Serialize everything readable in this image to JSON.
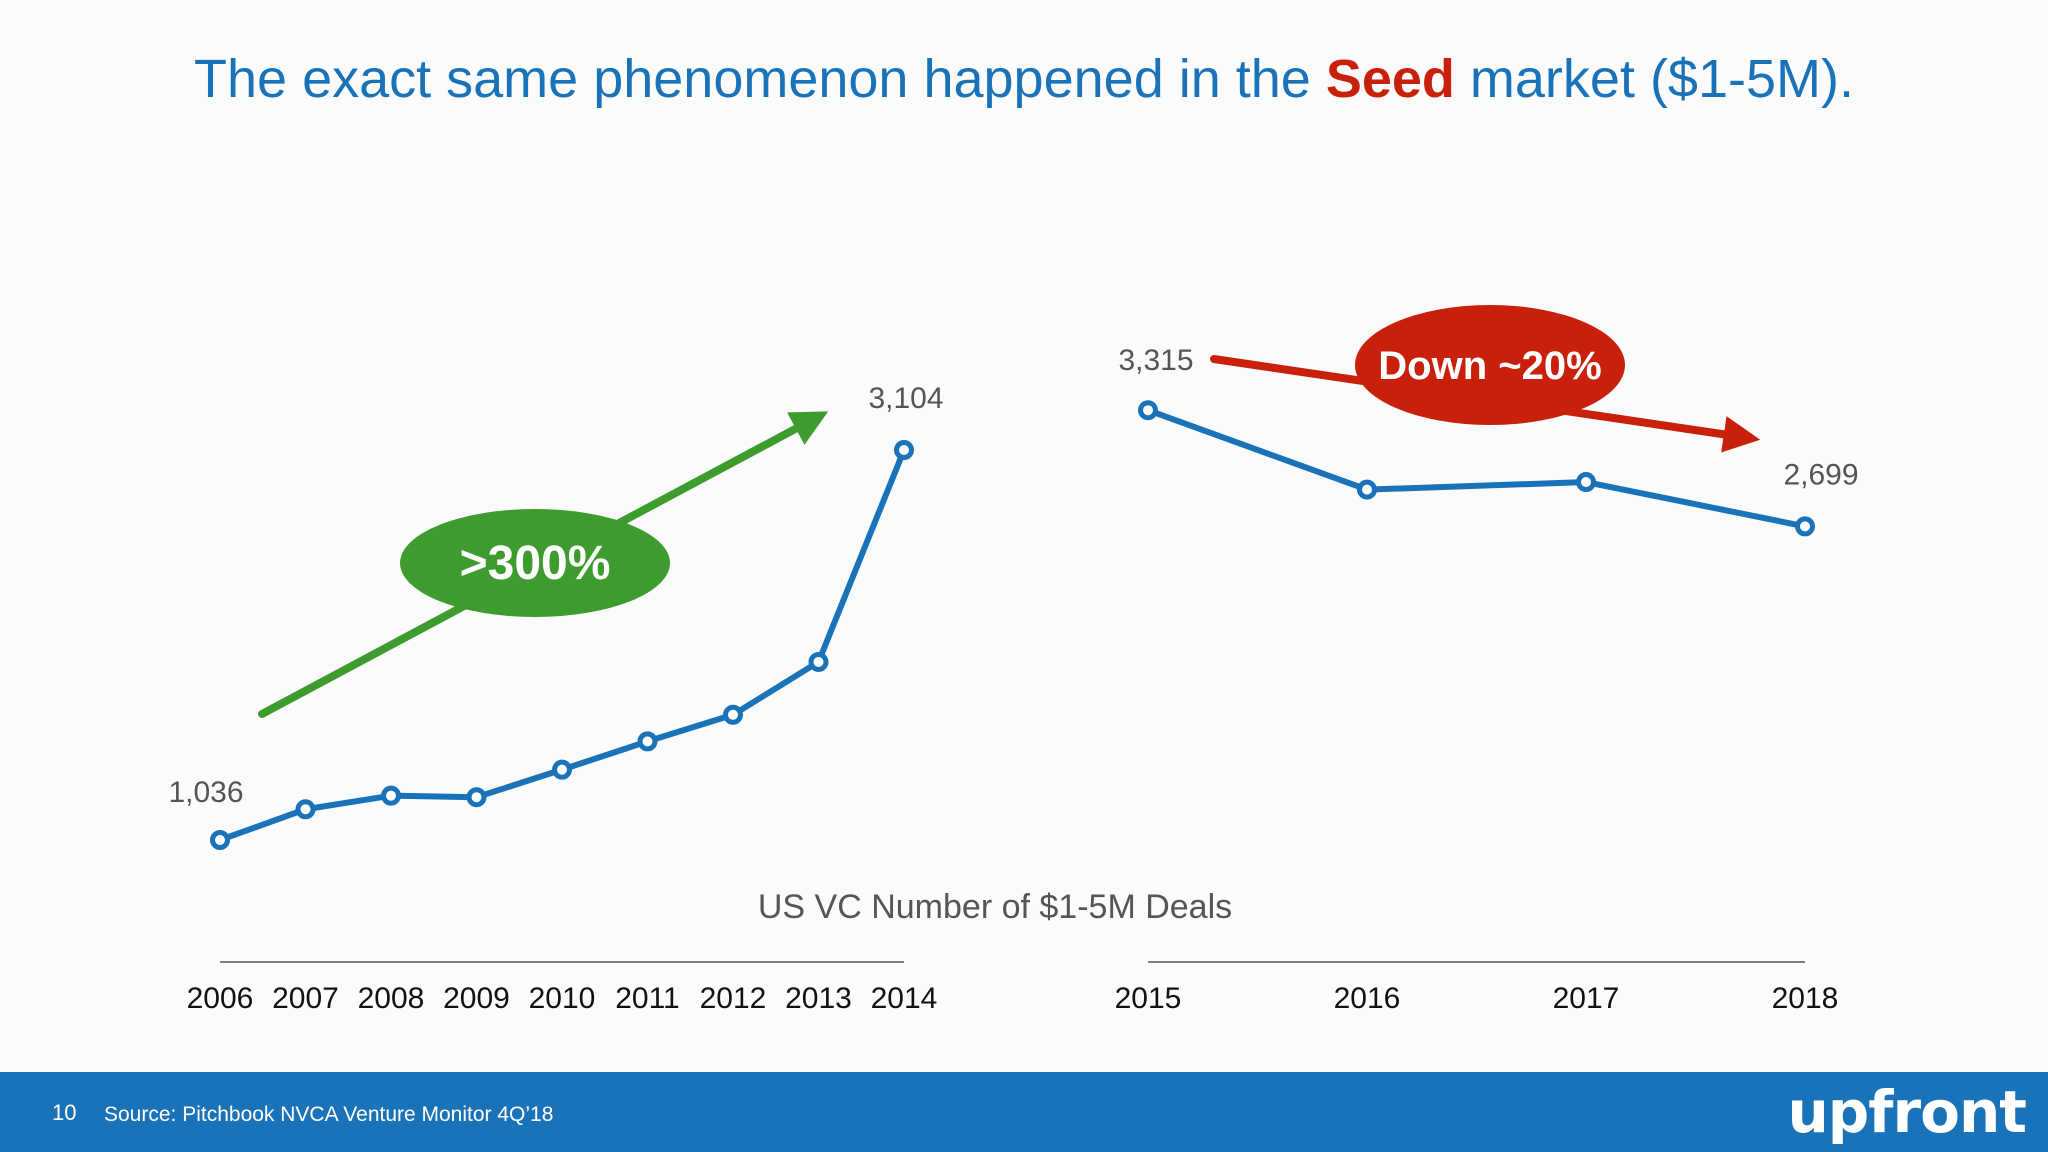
{
  "slide": {
    "title_before": "The exact same phenomenon happened in the ",
    "title_emphasis": "Seed",
    "title_after": " market ($1-5M).",
    "slide_number": "10",
    "source": "Source: Pitchbook NVCA Venture Monitor 4Q’18",
    "logo": "upfront"
  },
  "colors": {
    "title": "#1a73b8",
    "emphasis": "#c9200c",
    "line": "#1a73b8",
    "growth": "#3e9b2e",
    "decline": "#c9200c",
    "footer": "#1a73b8"
  },
  "chart_data": {
    "type": "line",
    "title": "US VC Number of $1-5M Deals",
    "x": [
      "2006",
      "2007",
      "2008",
      "2009",
      "2010",
      "2011",
      "2012",
      "2013",
      "2014",
      "2015",
      "2016",
      "2017",
      "2018"
    ],
    "segments": [
      {
        "categories": [
          "2006",
          "2007",
          "2008",
          "2009",
          "2010",
          "2011",
          "2012",
          "2013",
          "2014"
        ],
        "values": [
          1036,
          1199,
          1271,
          1263,
          1409,
          1559,
          1700,
          1980,
          3104
        ]
      },
      {
        "categories": [
          "2015",
          "2016",
          "2017",
          "2018"
        ],
        "values": [
          3315,
          2894,
          2934,
          2699
        ]
      }
    ],
    "data_labels": [
      {
        "category": "2006",
        "text": "1,036"
      },
      {
        "category": "2014",
        "text": "3,104"
      },
      {
        "category": "2015",
        "text": "3,315"
      },
      {
        "category": "2018",
        "text": "2,699"
      }
    ],
    "annotations": [
      {
        "text": ">300%",
        "color": "#3e9b2e",
        "trend": "up"
      },
      {
        "text": "Down ~20%",
        "color": "#c9200c",
        "trend": "down"
      }
    ],
    "grid": false,
    "legend": "none"
  }
}
